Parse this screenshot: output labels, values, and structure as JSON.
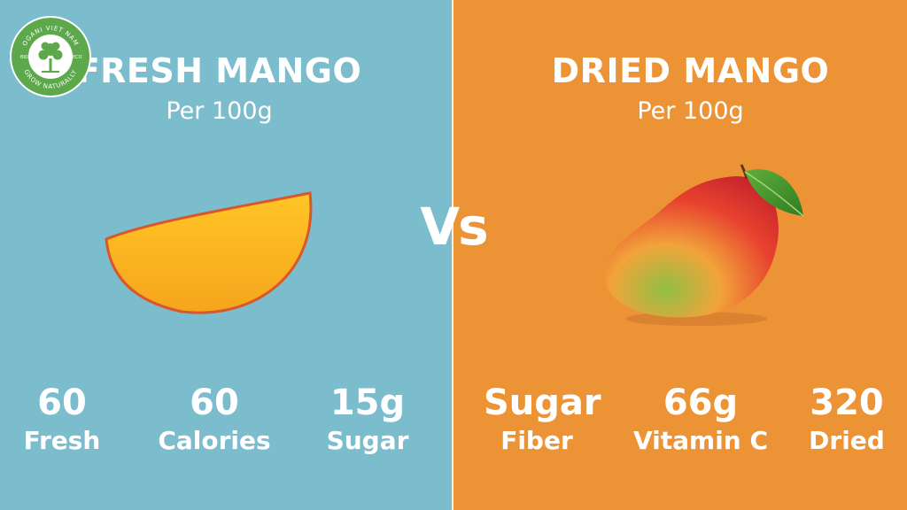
{
  "brand": {
    "logo_text_top": "OGANI VIET NAM",
    "logo_text_bottom": "GROW NATURALLY",
    "logo_left": "BIO",
    "logo_right": "ECO"
  },
  "left": {
    "title": "FRESH MANGO",
    "subtitle": "Per 100g",
    "background": "#7bbccd",
    "stats": [
      {
        "value": "60",
        "label": "Fresh"
      },
      {
        "value": "60",
        "label": "Calories"
      },
      {
        "value": "15g",
        "label": "Sugar"
      }
    ]
  },
  "vs": "Vs",
  "right": {
    "title": "DRIED MANGO",
    "subtitle": "Per 100g",
    "background": "#ec9336",
    "stats": [
      {
        "value": "Sugar",
        "label": "Fiber"
      },
      {
        "value": "66g",
        "label": "Vitamin C"
      },
      {
        "value": "320",
        "label": "Dried"
      }
    ]
  },
  "images": {
    "left": "mango-slice-icon",
    "right": "whole-mango-icon"
  }
}
